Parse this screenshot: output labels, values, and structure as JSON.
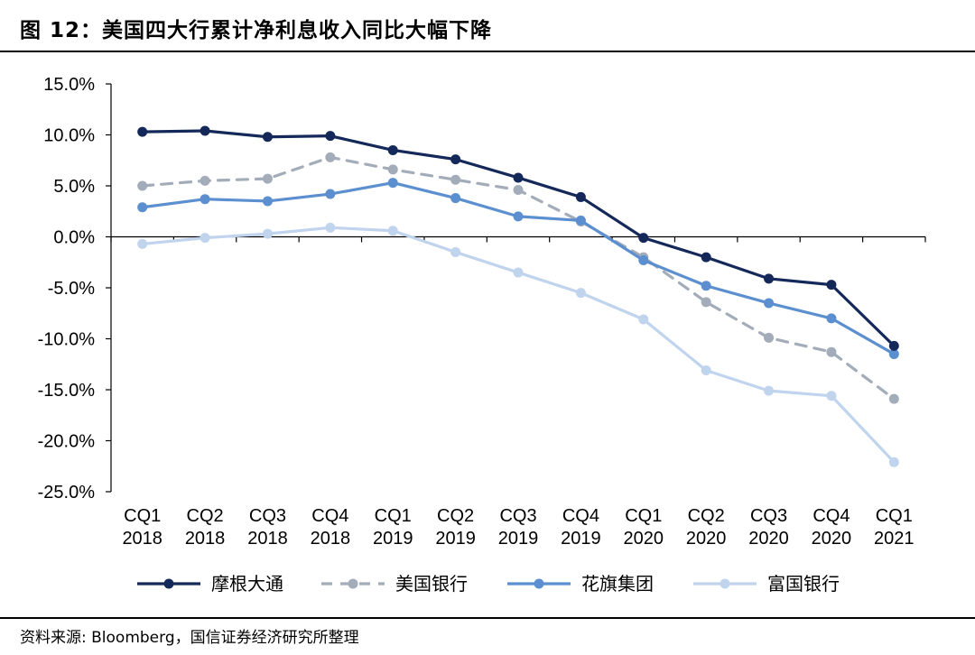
{
  "header": {
    "title": "图 12：美国四大行累计净利息收入同比大幅下降"
  },
  "footer": {
    "source": "资料来源: Bloomberg，国信证券经济研究所整理"
  },
  "chart_data": {
    "type": "line",
    "title": "",
    "xlabel": "",
    "ylabel": "",
    "categories": [
      [
        "CQ1",
        "2018"
      ],
      [
        "CQ2",
        "2018"
      ],
      [
        "CQ3",
        "2018"
      ],
      [
        "CQ4",
        "2018"
      ],
      [
        "CQ1",
        "2019"
      ],
      [
        "CQ2",
        "2019"
      ],
      [
        "CQ3",
        "2019"
      ],
      [
        "CQ4",
        "2019"
      ],
      [
        "CQ1",
        "2020"
      ],
      [
        "CQ2",
        "2020"
      ],
      [
        "CQ3",
        "2020"
      ],
      [
        "CQ4",
        "2020"
      ],
      [
        "CQ1",
        "2021"
      ]
    ],
    "ylim": [
      -25,
      15
    ],
    "yticks": [
      15,
      10,
      5,
      0,
      -5,
      -10,
      -15,
      -20,
      -25
    ],
    "ytick_labels": [
      "15.0%",
      "10.0%",
      "5.0%",
      "0.0%",
      "-5.0%",
      "-10.0%",
      "-15.0%",
      "-20.0%",
      "-25.0%"
    ],
    "grid": false,
    "legend_position": "bottom",
    "series": [
      {
        "name": "摩根大通",
        "color": "#14285a",
        "dashed": false,
        "values": [
          10.3,
          10.4,
          9.8,
          9.9,
          8.5,
          7.6,
          5.8,
          3.9,
          -0.1,
          -2.0,
          -4.1,
          -4.7,
          -10.7
        ]
      },
      {
        "name": "美国银行",
        "color": "#a3acb9",
        "dashed": true,
        "values": [
          5.0,
          5.5,
          5.7,
          7.8,
          6.6,
          5.6,
          4.6,
          1.5,
          -2.0,
          -6.4,
          -9.9,
          -11.3,
          -15.9
        ]
      },
      {
        "name": "花旗集团",
        "color": "#5b8fcf",
        "dashed": false,
        "values": [
          2.9,
          3.7,
          3.5,
          4.2,
          5.3,
          3.8,
          2.0,
          1.6,
          -2.3,
          -4.8,
          -6.5,
          -8.0,
          -11.5
        ]
      },
      {
        "name": "富国银行",
        "color": "#c0d4ee",
        "dashed": false,
        "values": [
          -0.7,
          -0.1,
          0.3,
          0.9,
          0.6,
          -1.5,
          -3.5,
          -5.5,
          -8.1,
          -13.1,
          -15.1,
          -15.6,
          -22.1
        ]
      }
    ]
  }
}
